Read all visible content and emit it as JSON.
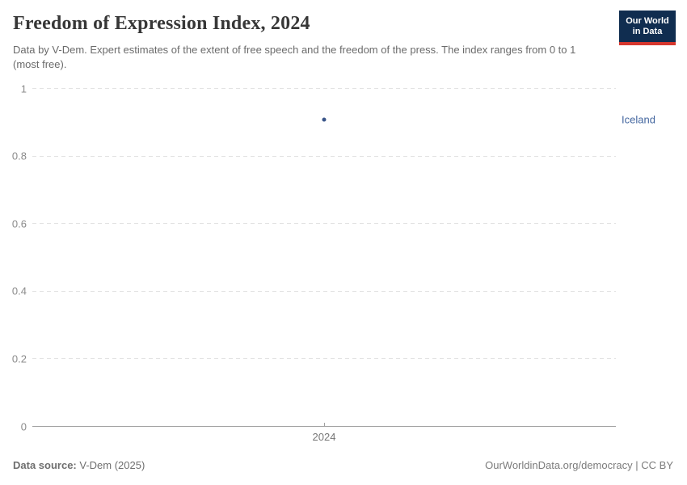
{
  "header": {
    "title": "Freedom of Expression Index, 2024",
    "subtitle": "Data by V-Dem. Expert estimates of the extent of free speech and the freedom of the press. The index ranges from 0 to 1 (most free).",
    "logo": {
      "line1": "Our World",
      "line2": "in Data",
      "bg_color": "#102d50",
      "bar_color": "#d6372e"
    }
  },
  "chart_data": {
    "type": "scatter",
    "title": "Freedom of Expression Index, 2024",
    "x": [
      2024
    ],
    "xtick_labels": [
      "2024"
    ],
    "yticks": [
      0,
      0.2,
      0.4,
      0.6,
      0.8,
      1
    ],
    "ytick_labels": [
      "0",
      "0.2",
      "0.4",
      "0.6",
      "0.8",
      "1"
    ],
    "ylim": [
      0,
      1
    ],
    "grid": "horizontal-dashed",
    "legend_position": "right-of-point",
    "series": [
      {
        "name": "Iceland",
        "x": 2024,
        "value": 0.91,
        "point_color": "#3a5589",
        "label_color": "#43669f"
      }
    ]
  },
  "footer": {
    "source_label": "Data source:",
    "source_value": "V-Dem (2025)",
    "credit": "OurWorldinData.org/democracy | CC BY"
  }
}
